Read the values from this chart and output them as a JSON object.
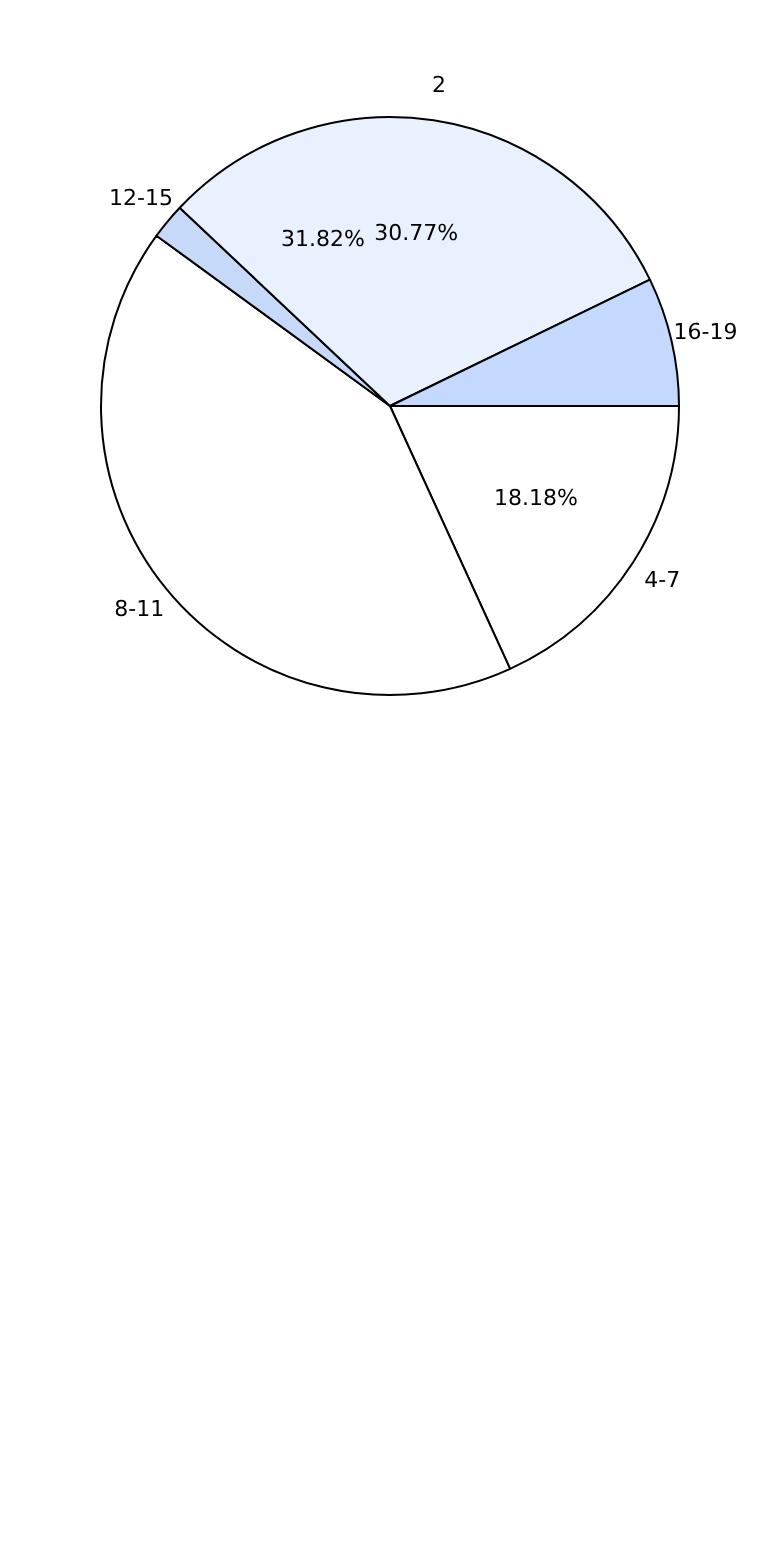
{
  "chart_data": {
    "type": "pie",
    "categories": [
      "4-7",
      "8-11",
      "12-15",
      "2",
      "16-19"
    ],
    "values": [
      18.18,
      41.85,
      2.0,
      30.77,
      7.2
    ],
    "colors": [
      "#ffffff",
      "#ffffff",
      "#c6d9f8",
      "#eaf1fe",
      "#c5d8fe"
    ],
    "value_labels": [
      "18.18%",
      null,
      null,
      "30.77%",
      null
    ],
    "annotations": [
      "31.82%"
    ],
    "legend": false
  }
}
